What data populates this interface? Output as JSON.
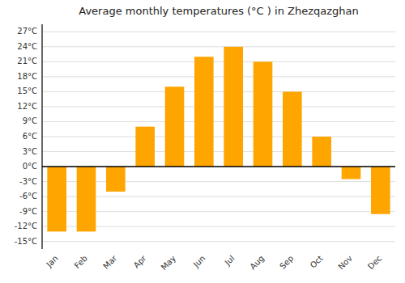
{
  "chart_data": {
    "type": "bar",
    "title": "Average monthly temperatures (°C ) in Zhezqazghan",
    "categories": [
      "Jan",
      "Feb",
      "Mar",
      "Apr",
      "May",
      "Jun",
      "Jul",
      "Aug",
      "Sep",
      "Oct",
      "Nov",
      "Dec"
    ],
    "values": [
      -13,
      -13,
      -5,
      8,
      16,
      22,
      24,
      21,
      15,
      6,
      -2.5,
      -9.5
    ],
    "color": "#FFA500",
    "ylim": [
      -16.5,
      28.5
    ],
    "yticks": [
      {
        "value": -15,
        "label": "-15°C"
      },
      {
        "value": -12,
        "label": "-12°C"
      },
      {
        "value": -9,
        "label": "-9°C"
      },
      {
        "value": -6,
        "label": "-6°C"
      },
      {
        "value": -3,
        "label": "-3°C"
      },
      {
        "value": 0,
        "label": "0°C"
      },
      {
        "value": 3,
        "label": "3°C"
      },
      {
        "value": 6,
        "label": "6°C"
      },
      {
        "value": 9,
        "label": "9°C"
      },
      {
        "value": 12,
        "label": "12°C"
      },
      {
        "value": 15,
        "label": "15°C"
      },
      {
        "value": 18,
        "label": "18°C"
      },
      {
        "value": 21,
        "label": "21°C"
      },
      {
        "value": 24,
        "label": "24°C"
      },
      {
        "value": 27,
        "label": "27°C"
      }
    ],
    "grid": true
  }
}
